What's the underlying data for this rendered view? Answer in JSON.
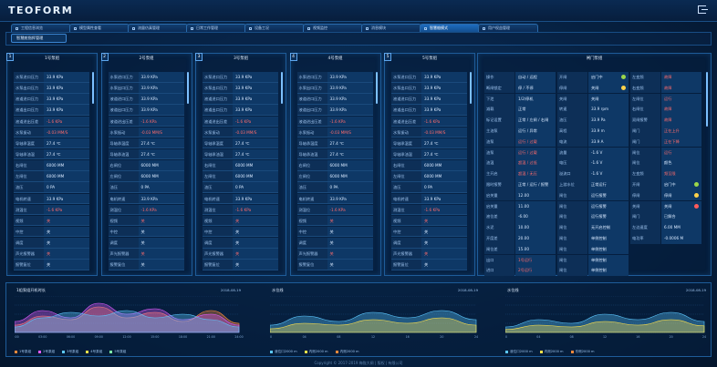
{
  "app": {
    "logo": "TEOFORM"
  },
  "tabs": [
    "工程信息浏览",
    "模型属性查看",
    "流量仿真管理",
    "日常工作管理",
    "设备工况",
    "视频监控",
    "消息模块",
    "智慧舱模式",
    "用户权益管理"
  ],
  "active_tab": 7,
  "subtab": "智慧舱指挥管理",
  "pump_panels": [
    {
      "num": "1",
      "title": "1号泵组"
    },
    {
      "num": "2",
      "title": "2号泵组"
    },
    {
      "num": "3",
      "title": "3号泵组"
    },
    {
      "num": "4",
      "title": "4号泵组"
    },
    {
      "num": "5",
      "title": "5号泵组"
    }
  ],
  "pump_rows": [
    {
      "k": "水泵进口压力",
      "v": "33.9 KPa",
      "red": false
    },
    {
      "k": "水泵出口压力",
      "v": "33.9 KPa",
      "red": false
    },
    {
      "k": "液道进口压力",
      "v": "33.9 KPa",
      "red": false
    },
    {
      "k": "液道出口压力",
      "v": "33.9 KPa",
      "red": false
    },
    {
      "k": "液道进出压差",
      "v": "-1.6 KPa",
      "red": true
    },
    {
      "k": "水泵振动",
      "v": "-0.03 MM/S",
      "red": true
    },
    {
      "k": "导轴承温度",
      "v": "27.4 ℃",
      "red": false
    },
    {
      "k": "导轴承油温",
      "v": "27.4 ℃",
      "red": false
    },
    {
      "k": "右闸位",
      "v": "6000 MM",
      "red": false
    },
    {
      "k": "左闸位",
      "v": "6000 MM",
      "red": false
    },
    {
      "k": "油压",
      "v": "0 PA",
      "red": false
    },
    {
      "k": "电机转速",
      "v": "33.9 KPa",
      "red": false
    },
    {
      "k": "测温位",
      "v": "-1.6 KPa",
      "red": true
    },
    {
      "k": "视频",
      "v": "关",
      "red": true
    },
    {
      "k": "中控",
      "v": "关",
      "red": false
    },
    {
      "k": "调度",
      "v": "关",
      "red": false
    },
    {
      "k": "声光报警器",
      "v": "关",
      "red": true
    },
    {
      "k": "报警复位",
      "v": "关",
      "red": false
    }
  ],
  "gate": {
    "title": "闸门泵组",
    "col1": [
      {
        "k": "操作",
        "v": "自动 / 远程",
        "red": false
      },
      {
        "k": "断闸锁定",
        "v": "停 / 不停",
        "red": false
      },
      {
        "k": "下泄",
        "v": "1/2/停机",
        "red": false
      },
      {
        "k": "减载",
        "v": "正常",
        "red": false
      },
      {
        "k": "标记设置",
        "v": "正常 / 左闸 / 右闸",
        "red": false
      },
      {
        "k": "主油泵",
        "v": "运行 / 异常",
        "red": false
      },
      {
        "k": "油泵",
        "v": "运行 / 过载",
        "red": true
      },
      {
        "k": "油泵",
        "v": "运行 / 过载",
        "red": true
      },
      {
        "k": "油温",
        "v": "超温 / 过低",
        "red": true
      },
      {
        "k": "主开启",
        "v": "超温 / 无压",
        "red": true
      },
      {
        "k": "限时报警",
        "v": "正常 / 运行 / 报警",
        "red": false
      },
      {
        "k": "启关量",
        "v": "12.00",
        "red": false
      },
      {
        "k": "启关量",
        "v": "11.00",
        "red": false
      },
      {
        "k": "液位差",
        "v": "-6.00",
        "red": false
      },
      {
        "k": "水泥",
        "v": "10.00",
        "red": false
      },
      {
        "k": "开度差",
        "v": "20.00",
        "red": false
      },
      {
        "k": "闸位差",
        "v": "15.00",
        "red": false
      },
      {
        "k": "出口",
        "v": "1号运行",
        "red": true
      },
      {
        "k": "进口",
        "v": "2号运行",
        "red": true
      }
    ],
    "col2": [
      {
        "k": "开闸",
        "v": "启门中",
        "dot": "#9cd64a"
      },
      {
        "k": "停闸",
        "v": "关闸",
        "dot": "#ffd24a"
      },
      {
        "k": "关闸",
        "v": "关闸",
        "dot": ""
      },
      {
        "k": "转速",
        "v": "33.9 rpm",
        "dot": ""
      },
      {
        "k": "油压",
        "v": "33.9 Pa",
        "dot": ""
      },
      {
        "k": "高程",
        "v": "33.9 m",
        "dot": ""
      },
      {
        "k": "电流",
        "v": "33.9 A",
        "dot": ""
      },
      {
        "k": "流量",
        "v": "-1.6 V",
        "dot": ""
      },
      {
        "k": "电压",
        "v": "-1.6 V",
        "dot": ""
      },
      {
        "k": "溢流口",
        "v": "-1.6 V",
        "dot": ""
      },
      {
        "k": "上游水位",
        "v": "正常运行",
        "dot": ""
      },
      {
        "k": "闸位",
        "v": "运行报警",
        "dot": ""
      },
      {
        "k": "闸位",
        "v": "运行报警",
        "dot": ""
      },
      {
        "k": "闸位",
        "v": "运行报警",
        "dot": ""
      },
      {
        "k": "闸位",
        "v": "无开启控制",
        "dot": ""
      },
      {
        "k": "闸位",
        "v": "单侧控制",
        "dot": ""
      },
      {
        "k": "闸位",
        "v": "单侧控制",
        "dot": ""
      },
      {
        "k": "闸位",
        "v": "单侧控制",
        "dot": ""
      },
      {
        "k": "闸位",
        "v": "单侧控制",
        "dot": ""
      }
    ],
    "col3": [
      {
        "k": "左变频",
        "v": "故障",
        "red": true,
        "dot": ""
      },
      {
        "k": "右变频",
        "v": "故障",
        "red": true,
        "dot": ""
      },
      {
        "k": "左闸位",
        "v": "运行",
        "red": true,
        "dot": ""
      },
      {
        "k": "右闸位",
        "v": "故障",
        "red": true,
        "dot": ""
      },
      {
        "k": "双闸报警",
        "v": "故障",
        "red": true,
        "dot": ""
      },
      {
        "k": "闸门",
        "v": "正在上升",
        "red": true,
        "dot": ""
      },
      {
        "k": "闸门",
        "v": "正在下降",
        "red": true,
        "dot": ""
      },
      {
        "k": "闸位",
        "v": "运行",
        "red": true,
        "dot": ""
      },
      {
        "k": "闸位",
        "v": "颜色",
        "red": false,
        "dot": ""
      },
      {
        "k": "左变频",
        "v": "频至限",
        "red": true,
        "dot": ""
      },
      {
        "k": "开闸",
        "v": "启门中",
        "red": false,
        "dot": "#9cd64a"
      },
      {
        "k": "停闸",
        "v": "停闸",
        "red": false,
        "dot": "#ffd24a"
      },
      {
        "k": "关闸",
        "v": "关闸",
        "red": false,
        "dot": "#ff5a5a"
      },
      {
        "k": "闸门",
        "v": "已解合",
        "red": false,
        "dot": ""
      },
      {
        "k": "左边速度",
        "v": "6.00 MM",
        "red": false,
        "dot": ""
      },
      {
        "k": "电功率",
        "v": "-0.0006 M",
        "red": false,
        "dot": ""
      }
    ]
  },
  "bottom_charts": [
    {
      "title": "1组泵组开机时长",
      "date": "2018-08-19",
      "legend": [
        "1号泵组",
        "2号泵组",
        "3号泵组",
        "4号泵组",
        "5号泵组"
      ],
      "colors": [
        "#ff8a3c",
        "#e05cff",
        "#5cc8ff",
        "#ffe14a",
        "#7effa8"
      ]
    },
    {
      "title": "水位线",
      "date": "2018-08-19",
      "legend": [
        "液位口2000 m",
        "内测2000 m",
        "内测2000 m"
      ],
      "colors": [
        "#5cc8ff",
        "#ffe14a",
        "#ff8a3c"
      ]
    },
    {
      "title": "水位线",
      "date": "2018-08-19",
      "legend": [
        "液位口2000 m",
        "内测2000 m",
        "东侧2000 m"
      ],
      "colors": [
        "#5cc8ff",
        "#ffe14a",
        "#ff8a3c"
      ]
    }
  ],
  "chart_data": [
    {
      "type": "area",
      "title": "1组泵组开机时长",
      "x": [
        "00:00",
        "03:00",
        "06:00",
        "09:00",
        "12:00",
        "15:00",
        "18:00",
        "21:00",
        "24:00"
      ],
      "series": [
        {
          "name": "1号泵组",
          "values": [
            20,
            45,
            35,
            70,
            40,
            55,
            30,
            60,
            25
          ]
        },
        {
          "name": "2号泵组",
          "values": [
            30,
            60,
            40,
            80,
            50,
            65,
            35,
            50,
            20
          ]
        },
        {
          "name": "3号泵组",
          "values": [
            15,
            40,
            55,
            45,
            60,
            40,
            50,
            35,
            15
          ]
        }
      ]
    },
    {
      "type": "area",
      "title": "水位线",
      "x": [
        "00",
        "04",
        "08",
        "12",
        "16",
        "20",
        "24"
      ],
      "series": [
        {
          "name": "液位口2000 m",
          "values": [
            20,
            45,
            30,
            55,
            40,
            60,
            35
          ]
        },
        {
          "name": "内测2000 m",
          "values": [
            10,
            25,
            20,
            35,
            25,
            40,
            20
          ]
        }
      ]
    },
    {
      "type": "area",
      "title": "水位线",
      "x": [
        "00",
        "04",
        "08",
        "12",
        "16",
        "20",
        "24"
      ],
      "series": [
        {
          "name": "液位口2000 m",
          "values": [
            15,
            35,
            25,
            50,
            35,
            55,
            30
          ]
        },
        {
          "name": "内测2000 m",
          "values": [
            8,
            20,
            15,
            30,
            20,
            35,
            18
          ]
        }
      ]
    }
  ],
  "footer": "Copyright © 2017-2019 梅陇大闸 | 版权 | 有限公司"
}
